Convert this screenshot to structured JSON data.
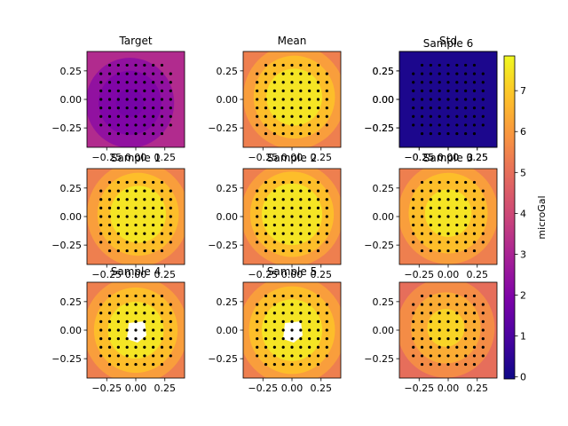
{
  "chart_data": {
    "type": "heatmap",
    "colorbar": {
      "label": "microGal",
      "ticks": [
        0,
        1,
        2,
        3,
        4,
        5,
        6,
        7
      ],
      "range": [
        -0.05,
        7.85
      ],
      "colormap": "plasma"
    },
    "panels": [
      {
        "title": "Target",
        "levels": [
          3.2,
          2.4,
          2.0,
          1.8
        ],
        "center": [
          -0.05,
          -0.03
        ],
        "radii": [
          0.38,
          0.27,
          0.12,
          0.02
        ],
        "hole": false
      },
      {
        "title": "Mean",
        "levels": [
          5.4,
          6.1,
          6.8,
          7.5
        ],
        "center": [
          0.02,
          0.02
        ],
        "radii": [
          0.44,
          0.35,
          0.24
        ],
        "hole": false
      },
      {
        "title": "Std",
        "levels": [
          0.2
        ],
        "center": [
          0,
          0
        ],
        "radii": [],
        "hole": false
      },
      {
        "title": "Sample 6",
        "levels": [],
        "center": [
          0,
          0
        ],
        "radii": [],
        "hole": false
      },
      {
        "title": "Sample 1",
        "levels": [
          5.4,
          6.1,
          6.8,
          7.5
        ],
        "center": [
          0.02,
          0.02
        ],
        "radii": [
          0.44,
          0.35,
          0.24
        ],
        "hole": false
      },
      {
        "title": "Sample 2",
        "levels": [
          5.4,
          6.1,
          6.8,
          7.5
        ],
        "center": [
          0.0,
          0.02
        ],
        "radii": [
          0.44,
          0.36,
          0.26
        ],
        "hole": false
      },
      {
        "title": "Sample 3",
        "levels": [
          5.4,
          6.1,
          6.8,
          7.5
        ],
        "center": [
          0.0,
          0.03
        ],
        "radii": [
          0.43,
          0.34,
          0.2
        ],
        "hole": false
      },
      {
        "title": "Sample 4",
        "levels": [
          5.4,
          6.1,
          6.8,
          7.5
        ],
        "center": [
          0.0,
          0.0
        ],
        "radii": [
          0.45,
          0.36,
          0.24
        ],
        "hole": true
      },
      {
        "title": "Sample 5",
        "levels": [
          5.4,
          6.1,
          6.8,
          7.5
        ],
        "center": [
          0.0,
          0.0
        ],
        "radii": [
          0.46,
          0.37,
          0.26
        ],
        "hole": true
      },
      {
        "title": "",
        "levels": [
          5.0,
          5.7,
          6.4,
          7.2
        ],
        "center": [
          -0.02,
          0.02
        ],
        "radii": [
          0.42,
          0.3,
          0.16
        ],
        "hole": false
      }
    ],
    "axes": {
      "xlim": [
        -0.42,
        0.42
      ],
      "ylim": [
        -0.42,
        0.42
      ],
      "xticks": [
        -0.25,
        0.0,
        0.25
      ],
      "yticks": [
        0.25,
        0.0,
        -0.25
      ],
      "xticklabels": [
        "−0.25",
        "0.00",
        "0.25"
      ],
      "yticklabels": [
        "0.25",
        "0.00",
        "−0.25"
      ]
    },
    "stations": {
      "grid": [
        -0.3,
        -0.225,
        -0.15,
        -0.075,
        0.0,
        0.075,
        0.15,
        0.225,
        0.3
      ]
    }
  }
}
